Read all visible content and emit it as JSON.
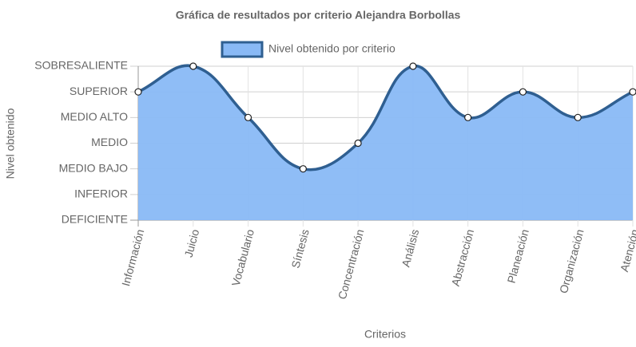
{
  "chart_data": {
    "type": "line",
    "title": "Gráfica de resultados por criterio Alejandra Borbollas",
    "y_label": "Nivel obtenido",
    "x_label": "Criterios",
    "categories": [
      "Información",
      "Juicio",
      "Vocabulario",
      "Síntesis",
      "Concentración",
      "Análisis",
      "Abstracción",
      "Planeación",
      "Organización",
      "Atención"
    ],
    "series": [
      {
        "name": "Nivel obtenido por criterio",
        "color": "#2f5f91",
        "fill": "#89b9f5",
        "values": [
          5,
          6,
          4,
          2,
          3,
          6,
          4,
          5,
          4,
          5
        ]
      }
    ],
    "ylim": [
      0,
      6
    ],
    "yticks": [
      {
        "value": 0,
        "label": "DEFICIENTE"
      },
      {
        "value": 1,
        "label": "INFERIOR"
      },
      {
        "value": 2,
        "label": "MEDIO BAJO"
      },
      {
        "value": 3,
        "label": "MEDIO"
      },
      {
        "value": 4,
        "label": "MEDIO ALTO"
      },
      {
        "value": 5,
        "label": "SUPERIOR"
      },
      {
        "value": 6,
        "label": "SOBRESALIENTE"
      }
    ],
    "grid": true,
    "legend": "top"
  }
}
